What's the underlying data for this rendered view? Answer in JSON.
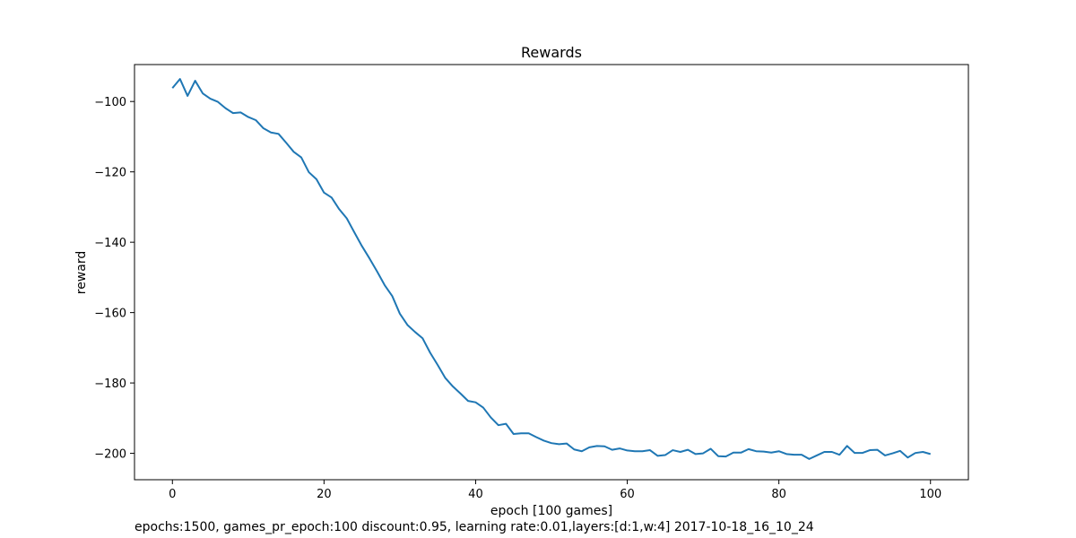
{
  "chart_data": {
    "type": "line",
    "title": "Rewards",
    "xlabel": "epoch [100 games]",
    "ylabel": "reward",
    "xlim": [
      -5,
      105
    ],
    "ylim": [
      -207.5,
      -89.5
    ],
    "xticks": [
      0,
      20,
      40,
      60,
      80,
      100
    ],
    "yticks": [
      -100,
      -120,
      -140,
      -160,
      -180,
      -200
    ],
    "grid": false,
    "series": [
      {
        "color": "#1f77b4",
        "x": [
          0,
          1,
          2,
          3,
          4,
          5,
          6,
          7,
          8,
          9,
          10,
          11,
          12,
          13,
          14,
          15,
          16,
          17,
          18,
          19,
          20,
          21,
          22,
          23,
          24,
          25,
          26,
          27,
          28,
          29,
          30,
          31,
          32,
          33,
          34,
          35,
          36,
          37,
          38,
          39,
          40,
          41,
          42,
          43,
          44,
          45,
          46,
          47,
          48,
          49,
          50,
          51,
          52,
          53,
          54,
          55,
          56,
          57,
          58,
          59,
          60,
          61,
          62,
          63,
          64,
          65,
          66,
          67,
          68,
          69,
          70,
          71,
          72,
          73,
          74,
          75,
          76,
          77,
          78,
          79,
          80,
          81,
          82,
          83,
          84,
          85,
          86,
          87,
          88,
          89,
          90,
          91,
          92,
          93,
          94,
          95,
          96,
          97,
          98,
          99,
          100
        ],
        "values": [
          -96.2,
          -93.6,
          -98.4,
          -94.1,
          -97.7,
          -99.2,
          -100.1,
          -101.9,
          -103.3,
          -103.1,
          -104.4,
          -105.3,
          -107.6,
          -108.8,
          -109.2,
          -111.7,
          -114.3,
          -115.9,
          -120.1,
          -122.1,
          -125.9,
          -127.3,
          -130.6,
          -133.2,
          -137.2,
          -141.1,
          -144.6,
          -148.3,
          -152.2,
          -155.3,
          -160.3,
          -163.5,
          -165.5,
          -167.3,
          -171.4,
          -174.9,
          -178.6,
          -181.0,
          -183.0,
          -185.1,
          -185.5,
          -187.0,
          -189.8,
          -192.0,
          -191.6,
          -194.5,
          -194.3,
          -194.3,
          -195.4,
          -196.4,
          -197.1,
          -197.4,
          -197.2,
          -198.9,
          -199.4,
          -198.3,
          -197.9,
          -198.0,
          -199.0,
          -198.6,
          -199.2,
          -199.4,
          -199.4,
          -199.1,
          -200.7,
          -200.5,
          -199.1,
          -199.6,
          -199.0,
          -200.2,
          -200.0,
          -198.7,
          -200.8,
          -200.9,
          -199.8,
          -199.8,
          -198.8,
          -199.4,
          -199.5,
          -199.8,
          -199.4,
          -200.2,
          -200.4,
          -200.4,
          -201.6,
          -200.6,
          -199.6,
          -199.6,
          -200.4,
          -197.9,
          -199.9,
          -199.9,
          -199.1,
          -199.0,
          -200.6,
          -200.0,
          -199.3,
          -201.2,
          -199.9,
          -199.6,
          -200.2
        ]
      }
    ]
  },
  "footer_note": "epochs:1500, games_pr_epoch:100 discount:0.95, learning rate:0.01,layers:[d:1,w:4] 2017-10-18_16_10_24"
}
